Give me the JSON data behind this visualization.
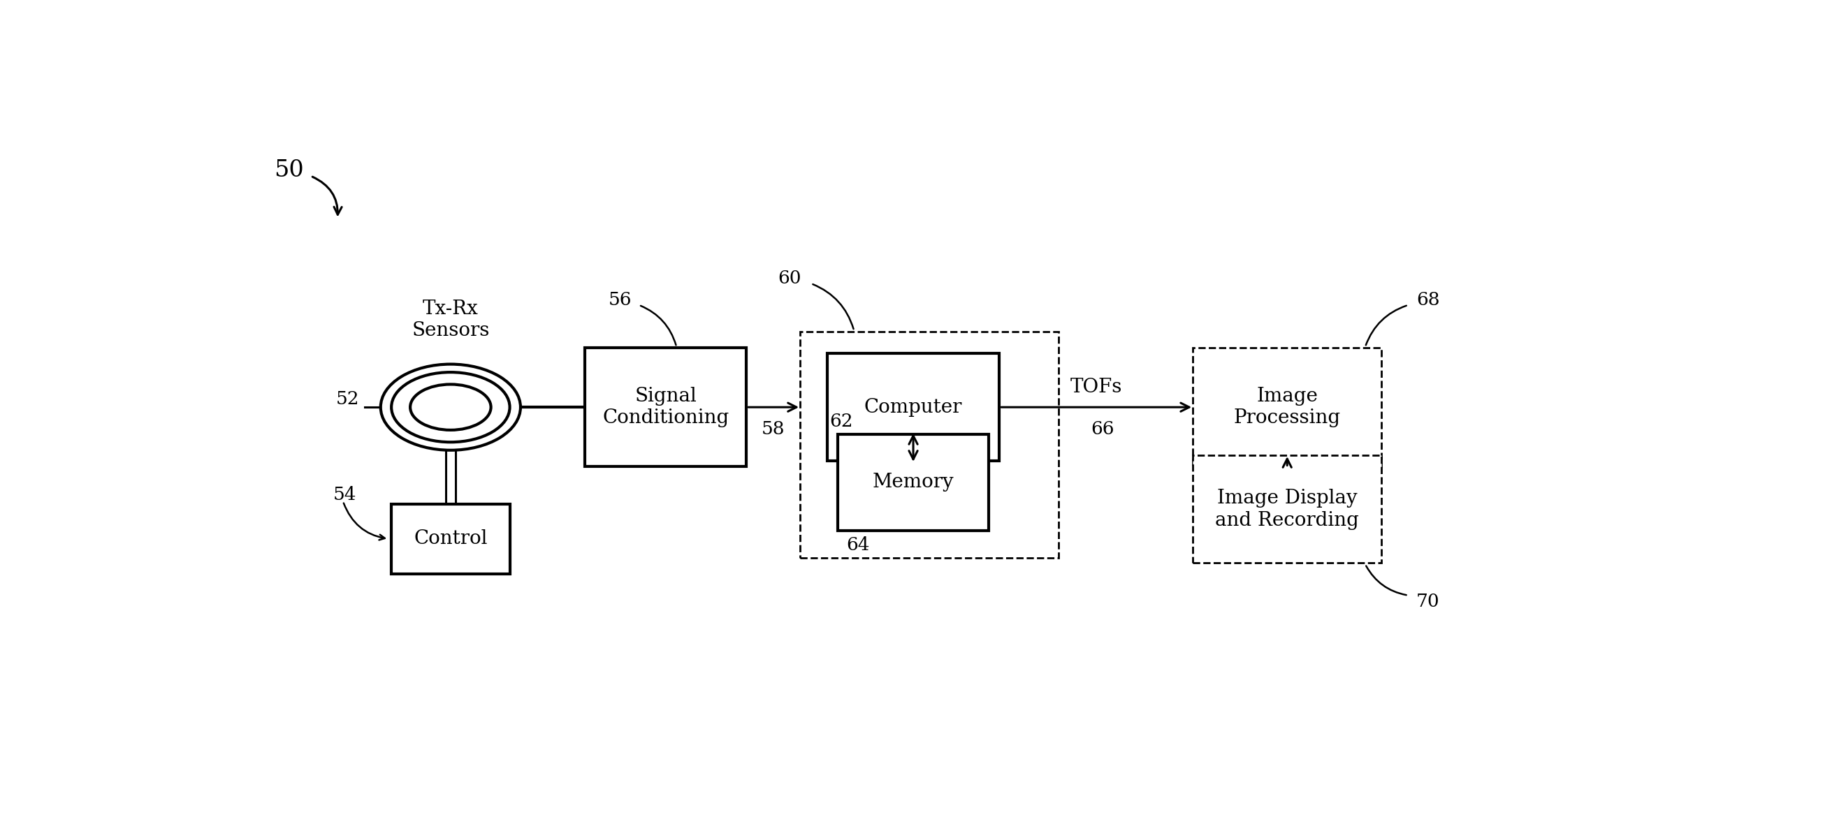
{
  "bg_color": "#ffffff",
  "line_color": "#000000",
  "fig_width": 26.42,
  "fig_height": 11.83,
  "label_50": "50",
  "label_52": "52",
  "label_54": "54",
  "label_56": "56",
  "label_58": "58",
  "label_60": "60",
  "label_62": "62",
  "label_64": "64",
  "label_66": "66",
  "label_68": "68",
  "label_70": "70",
  "text_tx_rx": "Tx-Rx\nSensors",
  "text_signal_cond": "Signal\nConditioning",
  "text_computer": "Computer",
  "text_memory": "Memory",
  "text_control": "Control",
  "text_image_proc": "Image\nProcessing",
  "text_image_display": "Image Display\nand Recording",
  "text_tofs": "TOFs"
}
